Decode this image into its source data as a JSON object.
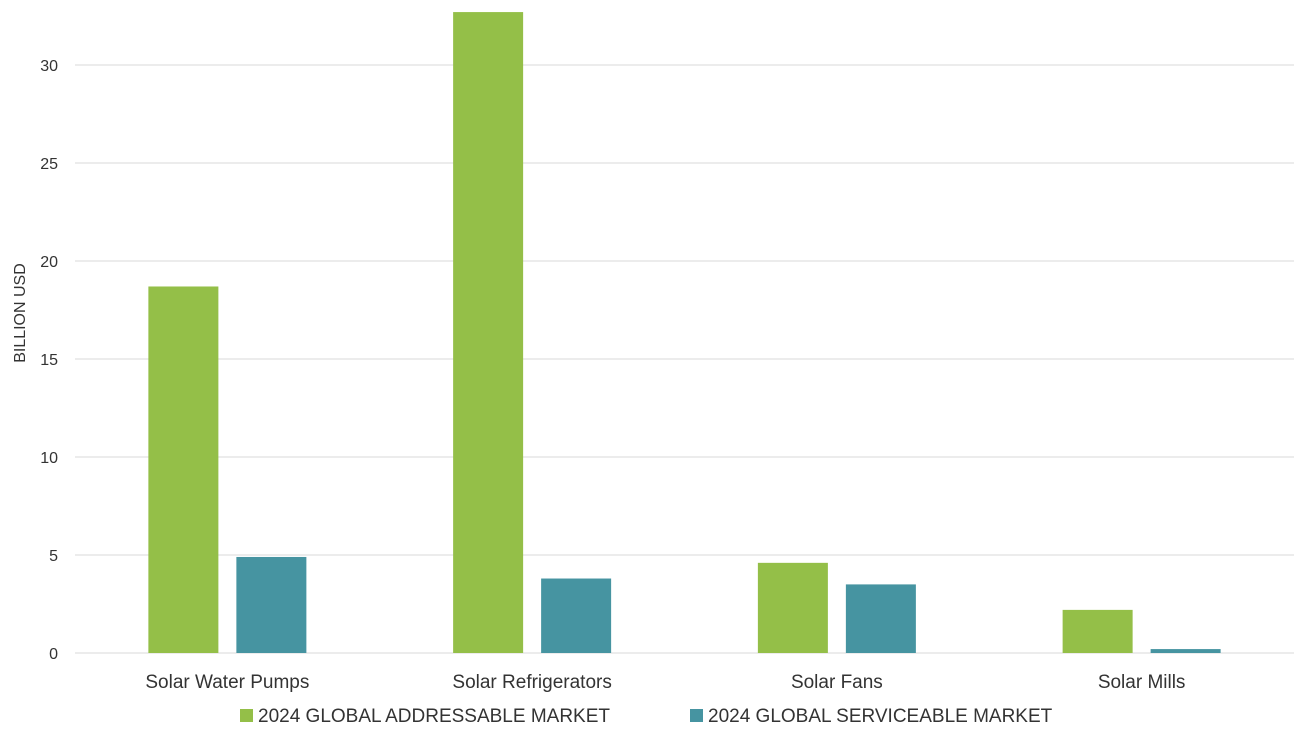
{
  "chart_data": {
    "type": "bar",
    "title": "",
    "xlabel": "",
    "ylabel": "BILLION USD",
    "ylim": [
      0,
      32.5
    ],
    "yticks": [
      0,
      5,
      10,
      15,
      20,
      25,
      30
    ],
    "grid": "horizontal",
    "legend_position": "bottom",
    "categories": [
      "Solar Water Pumps",
      "Solar Refrigerators",
      "Solar Fans",
      "Solar Mills"
    ],
    "series": [
      {
        "name": "2024 GLOBAL ADDRESSABLE MARKET",
        "color": "#94bf48",
        "values": [
          18.7,
          32.7,
          4.6,
          2.2
        ]
      },
      {
        "name": "2024 GLOBAL SERVICEABLE MARKET",
        "color": "#4694a1",
        "values": [
          4.9,
          3.8,
          3.5,
          0.2
        ]
      }
    ]
  }
}
